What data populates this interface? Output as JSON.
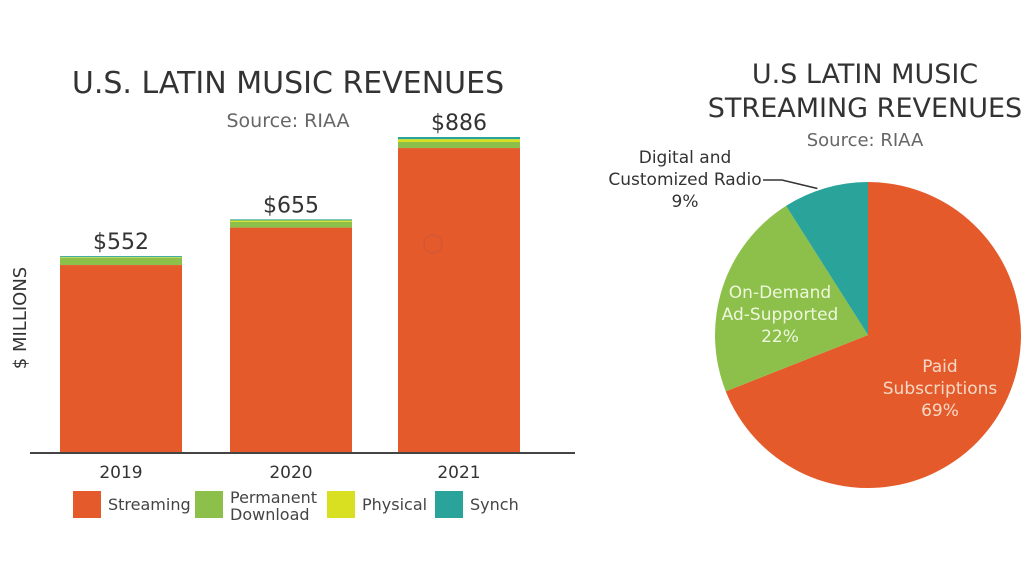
{
  "chart_data": [
    {
      "type": "bar",
      "stacked": true,
      "title": "U.S. LATIN MUSIC REVENUES",
      "subtitle": "Source: RIAA",
      "xlabel": "",
      "ylabel": "$ MILLIONS",
      "ylim": [
        0,
        886
      ],
      "grid": false,
      "legend_position": "bottom",
      "categories": [
        "2019",
        "2020",
        "2021"
      ],
      "totals": [
        552,
        655,
        886
      ],
      "total_labels": [
        "$552",
        "$655",
        "$886"
      ],
      "series": [
        {
          "name": "Streaming",
          "color": "#e55a2b",
          "values": [
            527,
            632,
            855
          ]
        },
        {
          "name": "Permanent Download",
          "color": "#8cc04b",
          "values": [
            20,
            16,
            17
          ]
        },
        {
          "name": "Physical",
          "color": "#d9e021",
          "values": [
            2,
            4,
            8
          ]
        },
        {
          "name": "Synch",
          "color": "#2aa39a",
          "values": [
            3,
            3,
            6
          ]
        }
      ],
      "legend": [
        {
          "label_lines": [
            "Streaming"
          ],
          "color": "#e55a2b"
        },
        {
          "label_lines": [
            "Permanent",
            "Download"
          ],
          "color": "#8cc04b"
        },
        {
          "label_lines": [
            "Physical"
          ],
          "color": "#d9e021"
        },
        {
          "label_lines": [
            "Synch"
          ],
          "color": "#2aa39a"
        }
      ]
    },
    {
      "type": "pie",
      "title_lines": [
        "U.S LATIN MUSIC",
        "STREAMING REVENUES"
      ],
      "subtitle": "Source: RIAA",
      "slices": [
        {
          "name": "Paid Subscriptions",
          "label_lines": [
            "Paid",
            "Subscriptions",
            "69%"
          ],
          "value": 69,
          "color": "#e55a2b",
          "label_color": "#f6d9c6"
        },
        {
          "name": "On-Demand Ad-Supported",
          "label_lines": [
            "On-Demand",
            "Ad-Supported",
            "22%"
          ],
          "value": 22,
          "color": "#8cc04b",
          "label_color": "#eef7dc"
        },
        {
          "name": "Digital and Customized Radio",
          "label_lines": [
            "Digital and",
            "Customized Radio",
            "9%"
          ],
          "value": 9,
          "color": "#2aa39a",
          "label_color": "#333333",
          "external_label": true
        }
      ]
    }
  ]
}
